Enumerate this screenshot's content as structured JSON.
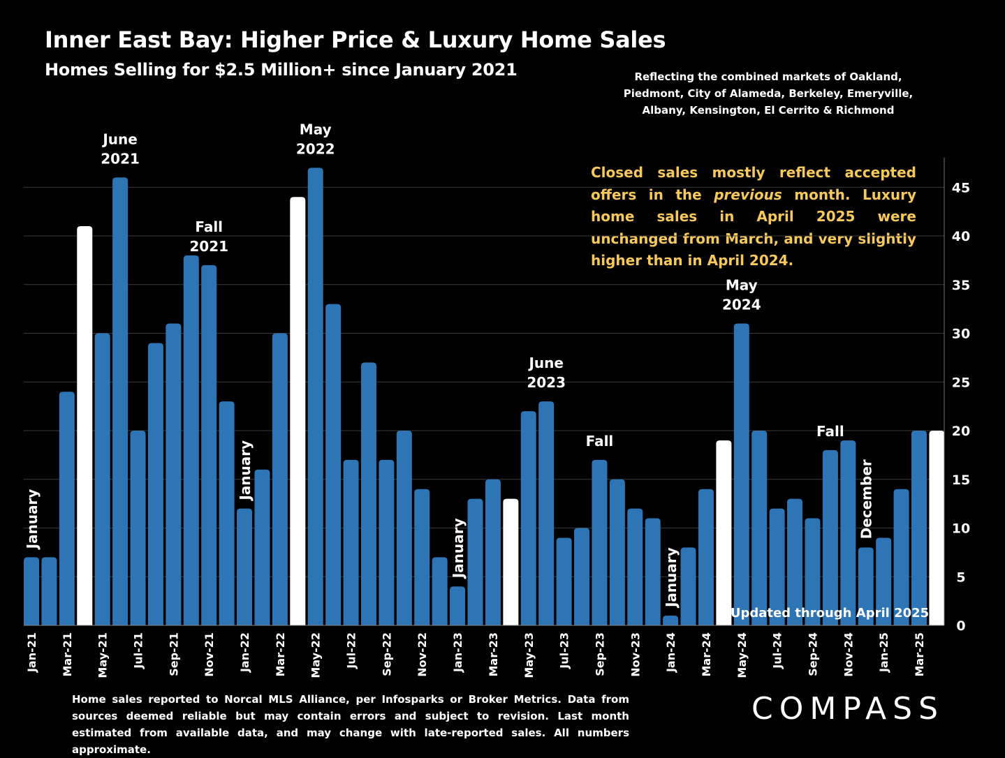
{
  "title": "Inner East Bay: Higher Price & Luxury Home Sales",
  "subtitle": "Homes Selling for $2.5 Million+ since January 2021",
  "markets_note": "Reflecting the combined markets of Oakland, Piedmont, City of Alameda, Berkeley, Emeryville, Albany, Kensington, El Cerrito & Richmond",
  "callout": {
    "part1": "Closed sales mostly reflect accepted offers in the ",
    "italic": "previous",
    "part2": " month. Luxury home sales in April 2025 were unchanged from March, and very slightly higher than in April 2024."
  },
  "updated_note": "Updated through April 2025",
  "footnote": "Home sales reported to Norcal MLS Alliance, per Infosparks or Broker Metrics. Data from sources deemed reliable but may contain errors and subject to revision.  Last month estimated from available data, and may change with late-reported sales. All numbers approximate.",
  "logo_text": "COMPASS",
  "colors": {
    "bar": "#2e75b6",
    "highlight": "#ffffff",
    "callout": "#f7c85c",
    "background": "#000000"
  },
  "chart_data": {
    "type": "bar",
    "title": "Inner East Bay: Higher Price & Luxury Home Sales",
    "subtitle": "Homes Selling for $2.5 Million+ since January 2021",
    "months": [
      "Jan-21",
      "Feb-21",
      "Mar-21",
      "Apr-21",
      "May-21",
      "Jun-21",
      "Jul-21",
      "Aug-21",
      "Sep-21",
      "Oct-21",
      "Nov-21",
      "Dec-21",
      "Jan-22",
      "Feb-22",
      "Mar-22",
      "Apr-22",
      "May-22",
      "Jun-22",
      "Jul-22",
      "Aug-22",
      "Sep-22",
      "Oct-22",
      "Nov-22",
      "Dec-22",
      "Jan-23",
      "Feb-23",
      "Mar-23",
      "Apr-23",
      "May-23",
      "Jun-23",
      "Jul-23",
      "Aug-23",
      "Sep-23",
      "Oct-23",
      "Nov-23",
      "Dec-23",
      "Jan-24",
      "Feb-24",
      "Mar-24",
      "Apr-24",
      "May-24",
      "Jun-24",
      "Jul-24",
      "Aug-24",
      "Sep-24",
      "Oct-24",
      "Nov-24",
      "Dec-24",
      "Jan-25",
      "Feb-25",
      "Mar-25",
      "Apr-25"
    ],
    "x_tick_labels": [
      "Jan-21",
      "Mar-21",
      "May-21",
      "Jul-21",
      "Sep-21",
      "Nov-21",
      "Jan-22",
      "Mar-22",
      "May-22",
      "Jul-22",
      "Sep-22",
      "Nov-22",
      "Jan-23",
      "Mar-23",
      "May-23",
      "Jul-23",
      "Sep-23",
      "Nov-23",
      "Jan-24",
      "Mar-24",
      "May-24",
      "Jul-24",
      "Sep-24",
      "Nov-24",
      "Jan-25",
      "Mar-25"
    ],
    "values": [
      7,
      7,
      24,
      41,
      30,
      46,
      20,
      29,
      31,
      38,
      37,
      23,
      12,
      16,
      30,
      44,
      47,
      33,
      17,
      27,
      17,
      20,
      14,
      7,
      4,
      13,
      15,
      13,
      22,
      23,
      9,
      10,
      17,
      15,
      12,
      11,
      1,
      8,
      14,
      19,
      31,
      20,
      12,
      13,
      11,
      18,
      19,
      8,
      9,
      14,
      20,
      20
    ],
    "highlight_months": [
      "Apr-21",
      "Apr-22",
      "Apr-23",
      "Apr-24",
      "Apr-25"
    ],
    "y_ticks": [
      0,
      5,
      10,
      15,
      20,
      25,
      30,
      35,
      40,
      45
    ],
    "ylim": [
      0,
      48
    ],
    "y_axis_position": "right",
    "grid": true,
    "annotations": [
      {
        "month": "Jan-21",
        "text": "January",
        "vertical": true
      },
      {
        "month": "Jun-21",
        "text": "June 2021",
        "lines": [
          "June",
          "2021"
        ]
      },
      {
        "month": "Nov-21",
        "text": "Fall 2021",
        "lines": [
          "Fall",
          "2021"
        ]
      },
      {
        "month": "Jan-22",
        "text": "January",
        "vertical": true
      },
      {
        "month": "May-22",
        "text": "May 2022",
        "lines": [
          "May",
          "2022"
        ]
      },
      {
        "month": "Jan-23",
        "text": "January",
        "vertical": true
      },
      {
        "month": "Jun-23",
        "text": "June 2023",
        "lines": [
          "June",
          "2023"
        ]
      },
      {
        "month": "Sep-23",
        "text": "Fall",
        "lines": [
          "Fall"
        ]
      },
      {
        "month": "Jan-24",
        "text": "January",
        "vertical": true
      },
      {
        "month": "May-24",
        "text": "May 2024",
        "lines": [
          "May",
          "2024"
        ]
      },
      {
        "month": "Oct-24",
        "text": "Fall",
        "lines": [
          "Fall"
        ]
      },
      {
        "month": "Dec-24",
        "text": "December",
        "vertical": true
      }
    ]
  }
}
